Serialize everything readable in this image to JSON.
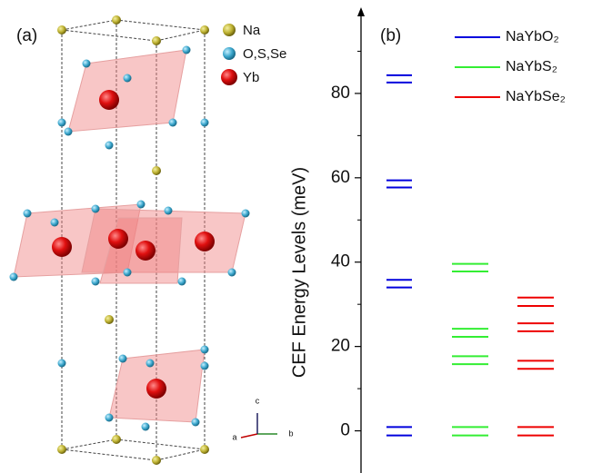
{
  "structure": {
    "label": "(a)",
    "legend": [
      "Na",
      "O,S,Se",
      "Yb"
    ],
    "axes": [
      "a",
      "b",
      "c"
    ]
  },
  "chart_data": {
    "type": "energy_levels",
    "label": "(b)",
    "y_label": "CEF Energy Levels (meV)",
    "ylim": [
      -10,
      100
    ],
    "yticks": [
      0,
      20,
      40,
      60,
      80
    ],
    "minor_yticks": [
      10,
      30,
      50,
      70,
      90
    ],
    "series": [
      {
        "name": "NaYbO₂",
        "color": "#0000dd",
        "values": [
          0.9,
          -1.1,
          34.0,
          35.8,
          57.7,
          59.4,
          82.6,
          84.3
        ]
      },
      {
        "name": "NaYbS₂",
        "color": "#33ee33",
        "values": [
          0.9,
          -1.1,
          15.8,
          17.7,
          22.3,
          24.2,
          37.8,
          39.6
        ]
      },
      {
        "name": "NaYbSe₂",
        "color": "#ee0000",
        "values": [
          0.9,
          -1.1,
          14.7,
          16.6,
          23.6,
          25.5,
          29.6,
          31.6
        ]
      }
    ]
  }
}
